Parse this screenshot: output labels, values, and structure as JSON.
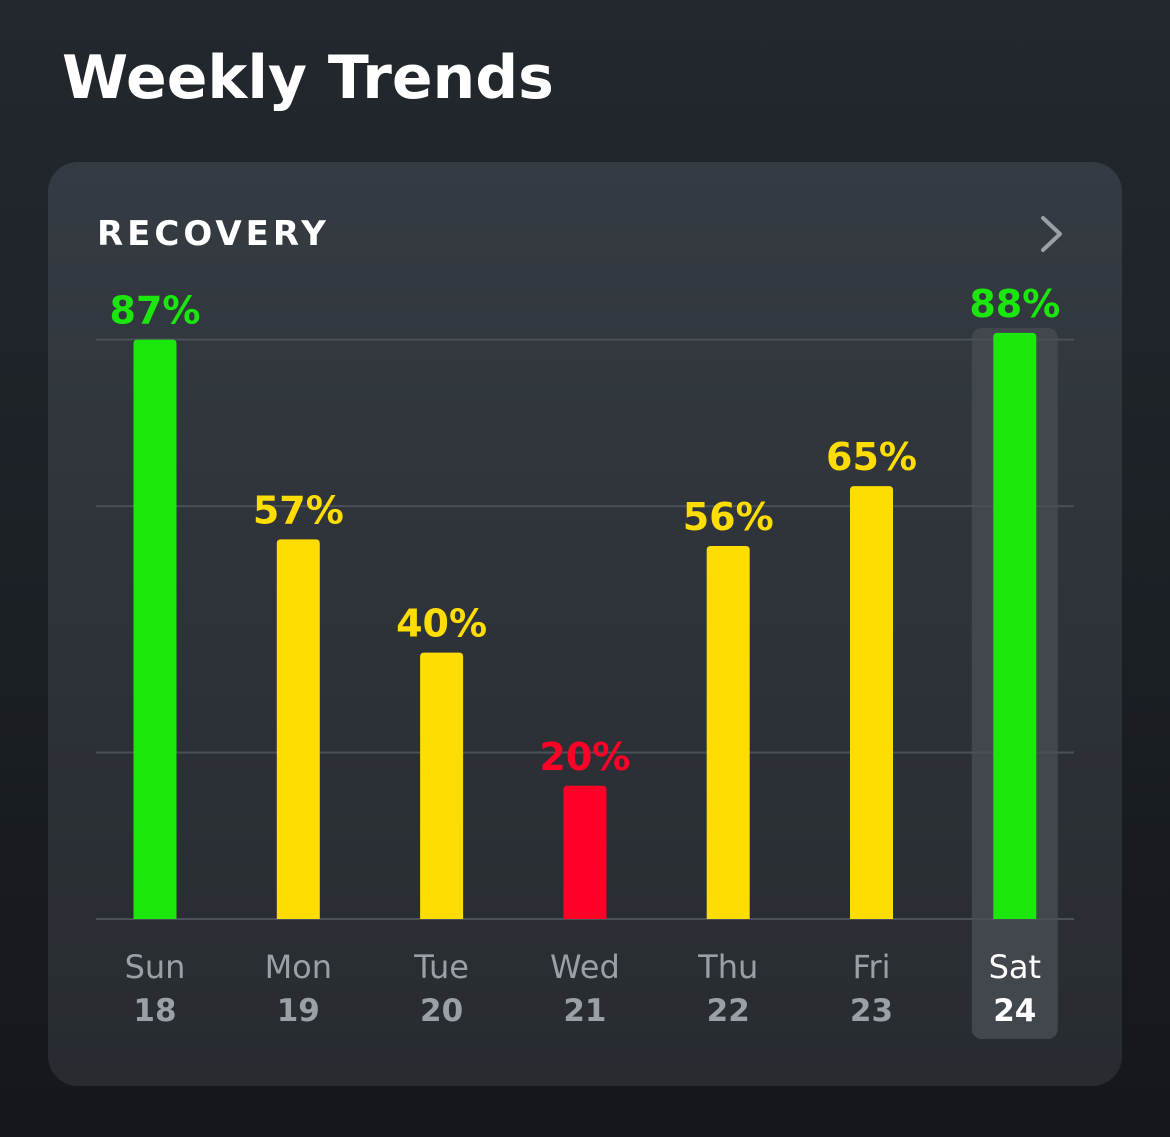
{
  "page": {
    "title": "Weekly Trends"
  },
  "card": {
    "title": "RECOVERY",
    "chevron_icon": "chevron-right-icon"
  },
  "colors": {
    "green": "#1be70c",
    "yellow": "#ffdd00",
    "red": "#ff0026",
    "label_muted": "#9aa0a6",
    "label_selected": "#ffffff",
    "grid": "#4a5058",
    "highlight": "#42474e"
  },
  "chart_data": {
    "type": "bar",
    "title": "RECOVERY",
    "xlabel": "",
    "ylabel": "",
    "ylim": [
      0,
      100
    ],
    "grid": true,
    "categories": [
      {
        "day": "Sun",
        "date": "18"
      },
      {
        "day": "Mon",
        "date": "19"
      },
      {
        "day": "Tue",
        "date": "20"
      },
      {
        "day": "Wed",
        "date": "21"
      },
      {
        "day": "Thu",
        "date": "22"
      },
      {
        "day": "Fri",
        "date": "23"
      },
      {
        "day": "Sat",
        "date": "24"
      }
    ],
    "values": [
      87,
      57,
      40,
      20,
      56,
      65,
      88
    ],
    "value_labels": [
      "87%",
      "57%",
      "40%",
      "20%",
      "56%",
      "65%",
      "88%"
    ],
    "bar_colors": [
      "green",
      "yellow",
      "yellow",
      "red",
      "yellow",
      "yellow",
      "green"
    ],
    "selected_index": 6
  }
}
